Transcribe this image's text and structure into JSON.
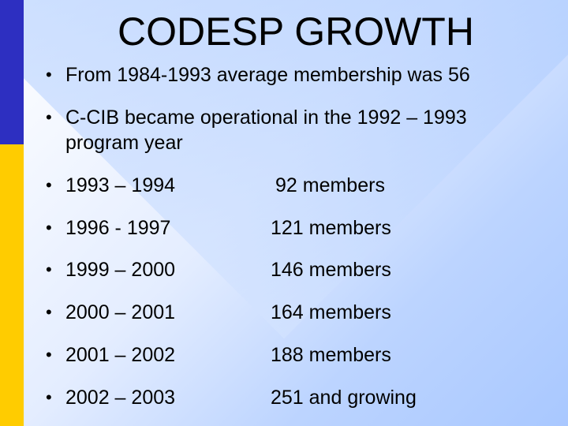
{
  "slide": {
    "title": "CODESP GROWTH",
    "bullet_char": "•",
    "bullets": [
      "From 1984-1993 average membership was 56",
      "C-CIB became operational in the 1992 – 1993",
      "program year"
    ],
    "rows": [
      {
        "years": "1993 – 1994",
        "members": "92 members"
      },
      {
        "years": "1996  - 1997",
        "members": "121 members"
      },
      {
        "years": "1999 – 2000",
        "members": "146 members"
      },
      {
        "years": "2000 – 2001",
        "members": "164 members"
      },
      {
        "years": "2001 – 2002",
        "members": "188 members"
      },
      {
        "years": "2002 – 2003",
        "members": "251 and growing"
      }
    ]
  }
}
